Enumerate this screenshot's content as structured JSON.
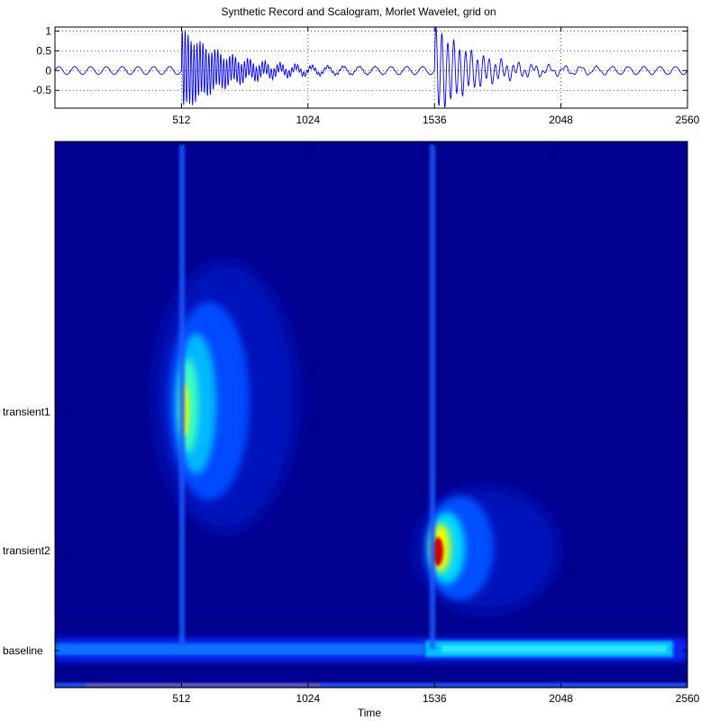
{
  "chart_data": [
    {
      "type": "line",
      "title": "Synthetic Record and Scalogram, Morlet Wavelet, grid on",
      "grid": true,
      "xlim": [
        0,
        2560
      ],
      "ylim": [
        -0.95,
        1.1
      ],
      "x_ticks": [
        512,
        1024,
        1536,
        2048,
        2560
      ],
      "x_tick_labels": [
        "512",
        "1024",
        "1536",
        "2048",
        "2560"
      ],
      "y_ticks": [
        1,
        0.5,
        0,
        -0.5
      ],
      "y_tick_labels": [
        "1",
        "0.5",
        "0",
        "-0.5"
      ],
      "series_color": "#0000ff",
      "signal": {
        "baseline_amplitude": 0.1,
        "baseline_period": 64,
        "events": [
          {
            "start": 512,
            "peak_amplitude": 1.0,
            "period": 12,
            "decay_samples": 180
          },
          {
            "start": 1536,
            "peak_amplitude": 1.1,
            "period": 24,
            "decay_samples": 160
          }
        ]
      }
    },
    {
      "type": "heatmap",
      "colormap": "jet",
      "background_color": "#00008f",
      "xlabel": "Time",
      "xlim": [
        0,
        2560
      ],
      "x_ticks": [
        512,
        1024,
        1536,
        2048,
        2560
      ],
      "x_tick_labels": [
        "512",
        "1024",
        "1536",
        "2048",
        "2560"
      ],
      "y_tick_labels": [
        "transient1",
        "transient2",
        "baseline"
      ],
      "features": [
        {
          "label": "transient1",
          "time": 512,
          "peak_intensity": 0.68
        },
        {
          "label": "transient2",
          "time": 1536,
          "peak_intensity": 0.9
        },
        {
          "label": "baseline",
          "intensity_before_1536": 0.35,
          "intensity_after_1536": 0.5
        }
      ]
    }
  ]
}
